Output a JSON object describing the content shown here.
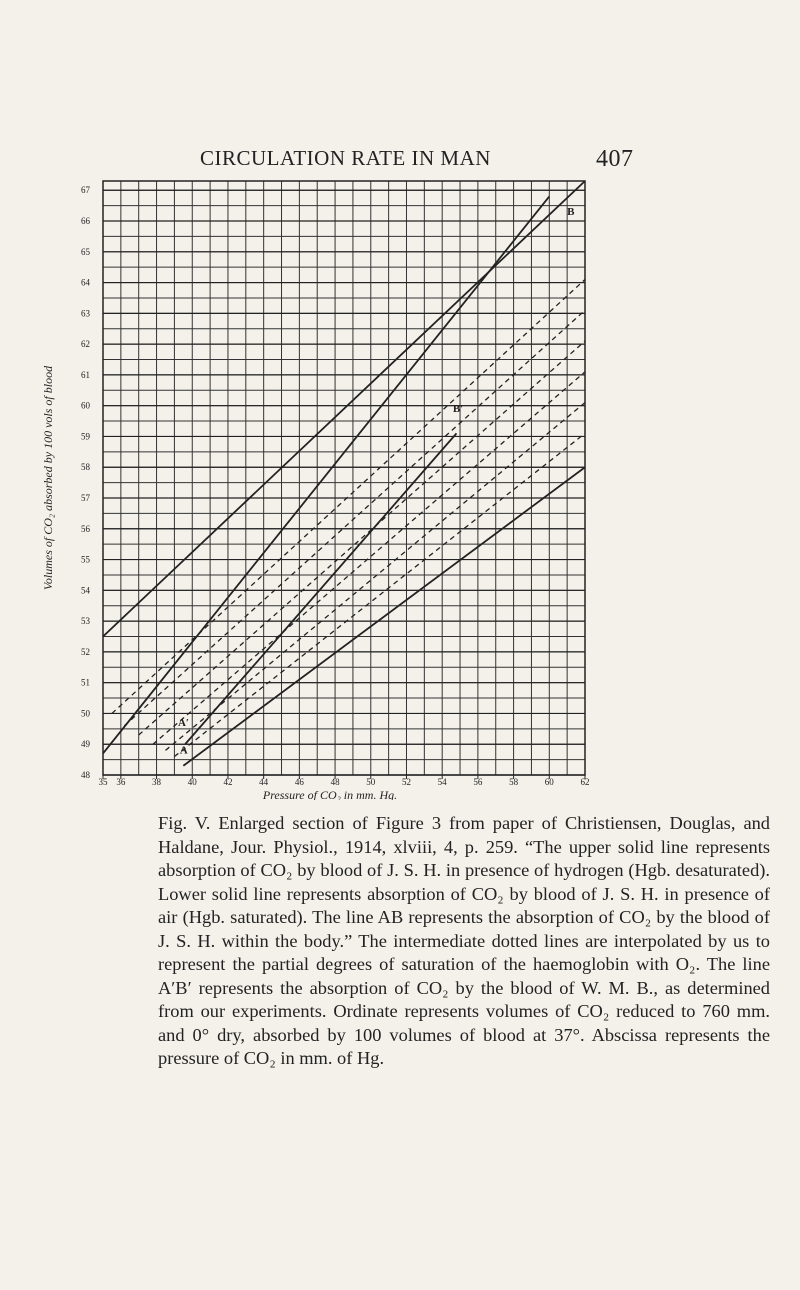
{
  "header": {
    "title": "CIRCULATION RATE IN MAN",
    "page": "407"
  },
  "chart_data": {
    "type": "line",
    "y_label": "Volumes of CO₂ absorbed by 100 vols of blood",
    "x_label": "Pressure of CO₂ in mm. Hg.",
    "xlim": [
      35,
      62
    ],
    "ylim": [
      48,
      67.3
    ],
    "xticks": [
      35,
      36,
      38,
      40,
      42,
      44,
      46,
      48,
      50,
      52,
      54,
      56,
      58,
      60,
      62
    ],
    "yticks": [
      48,
      49,
      50,
      51,
      52,
      53,
      54,
      55,
      56,
      57,
      58,
      59,
      60,
      61,
      62,
      63,
      64,
      65,
      66,
      67
    ],
    "grid": true,
    "series": [
      {
        "color": "#222",
        "dashed": false,
        "x": [
          35,
          62
        ],
        "values": [
          52.5,
          67.3
        ]
      },
      {
        "color": "#222",
        "dashed": false,
        "x": [
          35,
          60
        ],
        "values": [
          48.7,
          66.8
        ]
      },
      {
        "color": "#222",
        "dashed": false,
        "x": [
          39.5,
          62
        ],
        "values": [
          48.3,
          58
        ]
      },
      {
        "color": "#222",
        "dashed": false,
        "x": [
          39.6,
          54.8
        ],
        "values": [
          49,
          59.1
        ]
      },
      {
        "color": "#222",
        "dashed": true,
        "x": [
          35.5,
          62
        ],
        "values": [
          50,
          64.1
        ]
      },
      {
        "color": "#222",
        "dashed": true,
        "x": [
          36.2,
          62
        ],
        "values": [
          49.6,
          63.1
        ]
      },
      {
        "color": "#222",
        "dashed": true,
        "x": [
          37,
          62
        ],
        "values": [
          49.3,
          62.1
        ]
      },
      {
        "color": "#222",
        "dashed": true,
        "x": [
          37.8,
          62
        ],
        "values": [
          49,
          61.1
        ]
      },
      {
        "color": "#222",
        "dashed": true,
        "x": [
          38.5,
          62
        ],
        "values": [
          48.8,
          60.1
        ]
      },
      {
        "color": "#222",
        "dashed": true,
        "x": [
          39,
          62
        ],
        "values": [
          48.6,
          59.1
        ]
      }
    ],
    "annotations": [
      "A",
      "B",
      "A′",
      "B′"
    ]
  },
  "caption": "Fig. V. Enlarged section of Figure 3 from paper of Christiensen, Douglas, and Haldane, Jour. Physiol., 1914, xlviii, 4, p. 259. “The upper solid line represents absorption of CO₂ by blood of J. S. H. in presence of hydrogen (Hgb. desaturated). Lower solid line represents absorption of CO₂ by blood of J. S. H. in presence of air (Hgb. saturated). The line AB represents the absorption of CO₂ by the blood of J. S. H. within the body.” The intermediate dotted lines are interpolated by us to represent the partial degrees of saturation of the haemoglobin with O₂. The line A′B′ represents the absorption of CO₂ by the blood of W. M. B., as determined from our experiments. Ordinate represents volumes of CO₂ reduced to 760 mm. and 0° dry, absorbed by 100 volumes of blood at 37°. Abscissa represents the pressure of CO₂ in mm. of Hg."
}
